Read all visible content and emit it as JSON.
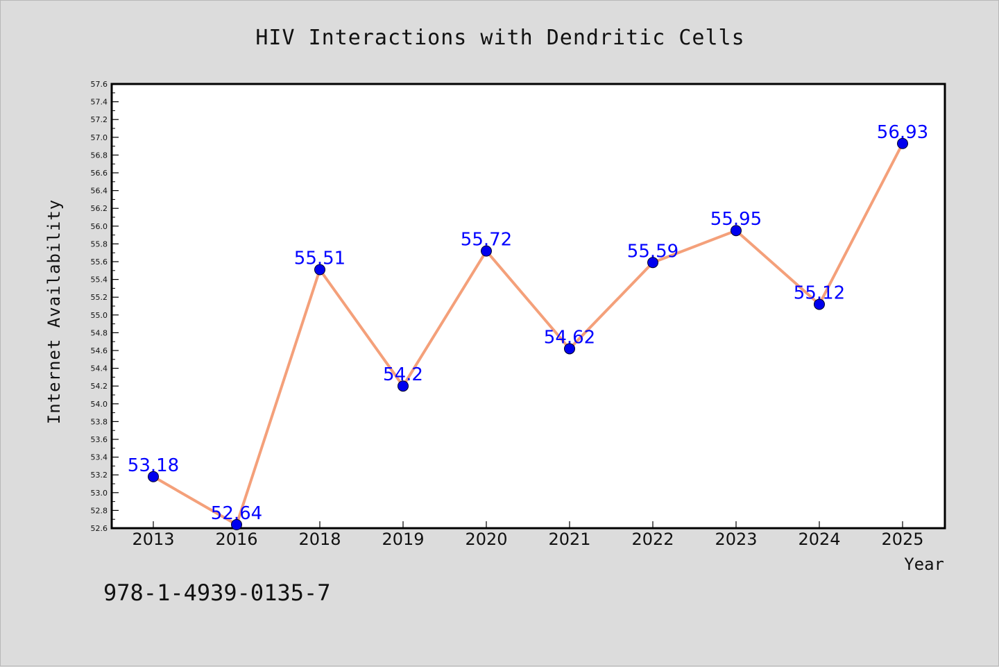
{
  "footer_code": "978-1-4939-0135-7",
  "chart_data": {
    "type": "line",
    "title": "HIV Interactions with Dendritic Cells",
    "xlabel": "Year",
    "ylabel": "Internet Availability",
    "categories": [
      "2013",
      "2016",
      "2018",
      "2019",
      "2020",
      "2021",
      "2022",
      "2023",
      "2024",
      "2025"
    ],
    "values": [
      53.18,
      52.64,
      55.51,
      54.2,
      55.72,
      54.62,
      55.59,
      55.95,
      55.12,
      56.93
    ],
    "data_labels": [
      "53.18",
      "52.64",
      "55.51",
      "54.2",
      "55.72",
      "54.62",
      "55.59",
      "55.95",
      "55.12",
      "56.93"
    ],
    "ylim": [
      52.6,
      57.6
    ],
    "yticks": [
      "52.6",
      "52.8",
      "53.0",
      "53.2",
      "53.4",
      "53.6",
      "53.8",
      "54.0",
      "54.2",
      "54.4",
      "54.6",
      "54.8",
      "55.0",
      "55.2",
      "55.4",
      "55.6",
      "55.8",
      "56.0",
      "56.2",
      "56.4",
      "56.6",
      "56.8",
      "57.0",
      "57.2",
      "57.4",
      "57.6"
    ],
    "grid": false,
    "legend": "none",
    "line_color": "#f4a07a",
    "marker_color": "#0000ee",
    "label_color": "#0000ff"
  }
}
